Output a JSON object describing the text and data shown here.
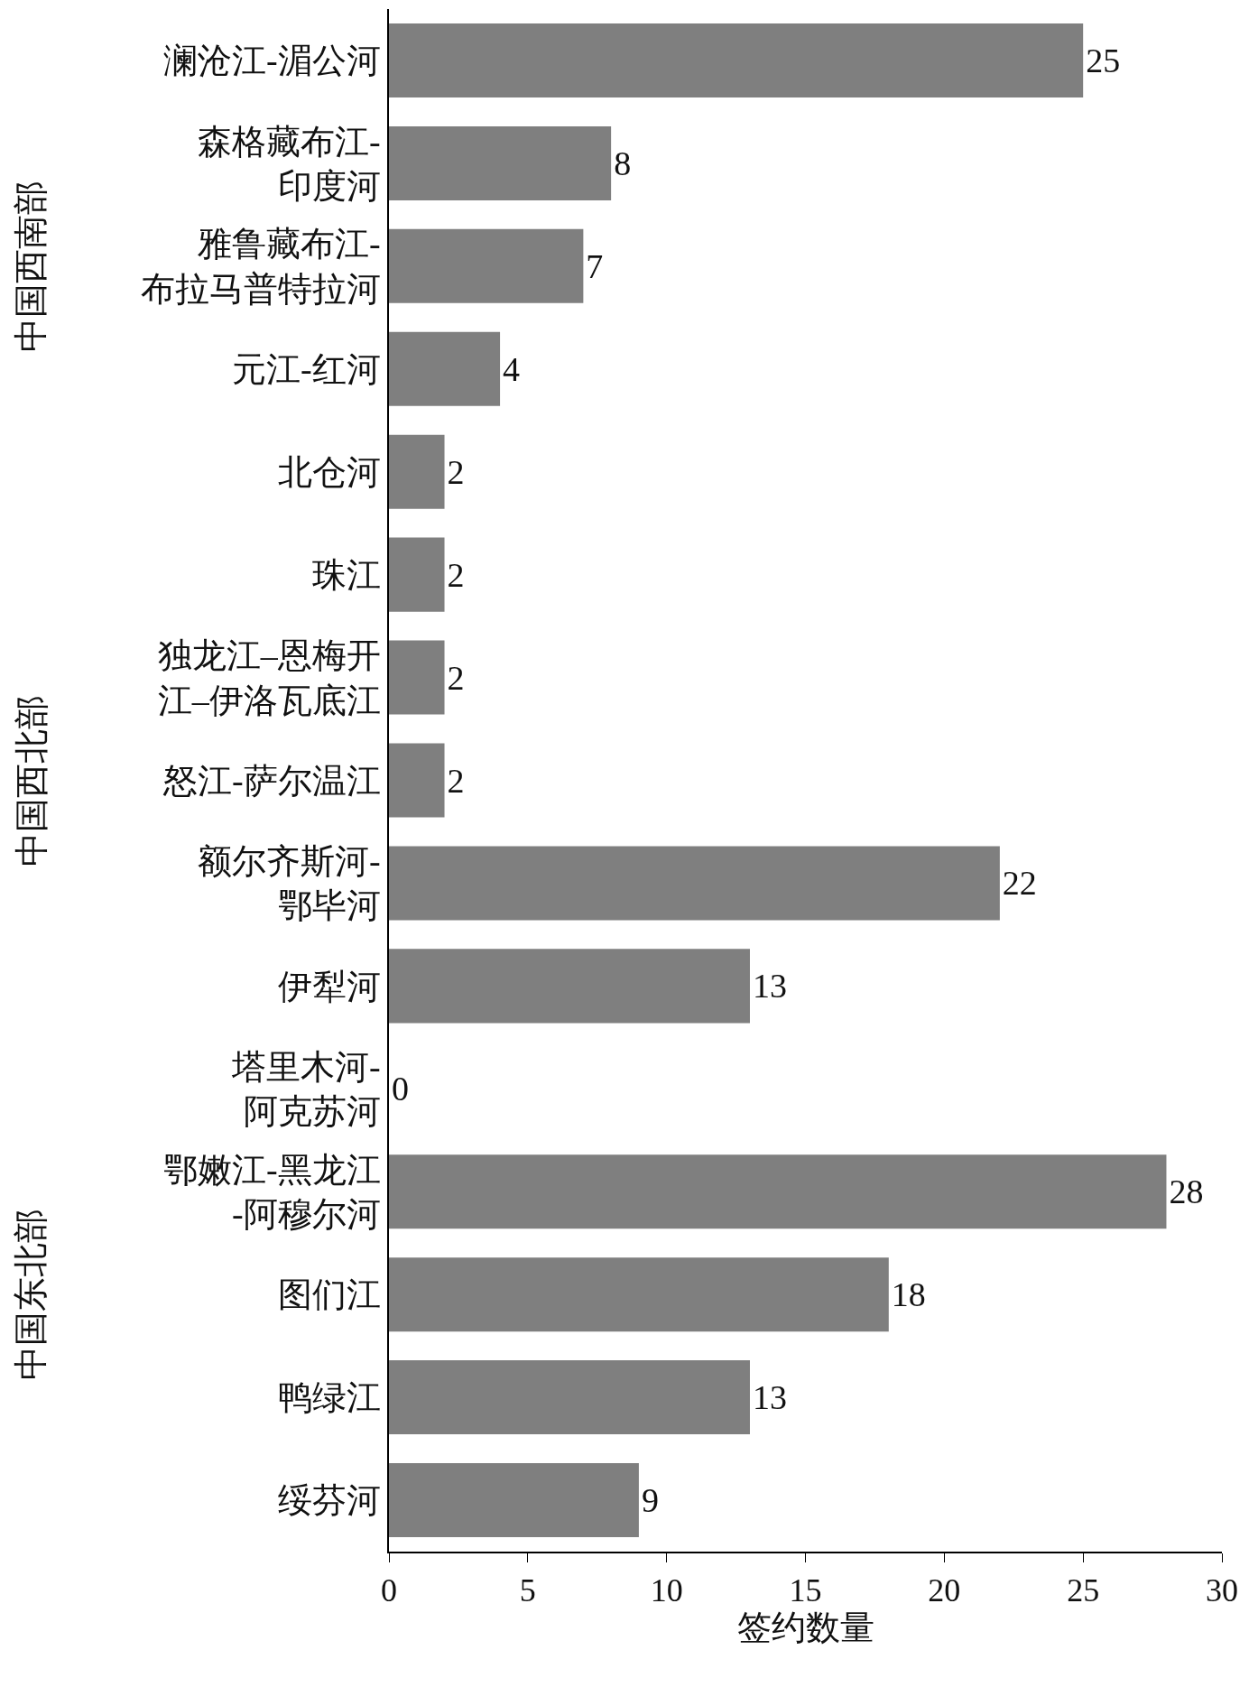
{
  "chart_data": {
    "type": "bar",
    "orientation": "horizontal",
    "xlabel": "签约数量",
    "categories": [
      "澜沧江-湄公河",
      "森格藏布江-印度河",
      "雅鲁藏布江-布拉马普特拉河",
      "元江-红河",
      "北仓河",
      "珠江",
      "独龙江–恩梅开江–伊洛瓦底江",
      "怒江-萨尔温江",
      "额尔齐斯河-鄂毕河",
      "伊犁河",
      "塔里木河-阿克苏河",
      "鄂嫩江-黑龙江-阿穆尔河",
      "图们江",
      "鸭绿江",
      "绥芬河"
    ],
    "values": [
      25,
      8,
      7,
      4,
      2,
      2,
      2,
      2,
      22,
      13,
      0,
      28,
      18,
      13,
      9
    ],
    "color": "#7f7f7f",
    "xlim": [
      0,
      30
    ],
    "xticks": [
      0,
      5,
      10,
      15,
      20,
      25,
      30
    ],
    "data_labels": true,
    "grid": false,
    "annotations": [
      "中国西南部",
      "中国西北部",
      "中国东北部"
    ]
  }
}
